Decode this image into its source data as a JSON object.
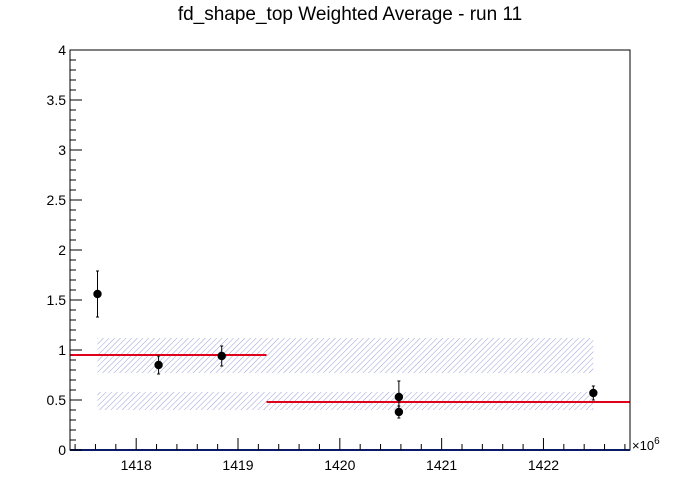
{
  "chart_data": {
    "type": "scatter",
    "title": "fd_shape_top Weighted Average - run 11",
    "xlabel": "",
    "ylabel": "",
    "x_exponent_label": "×10",
    "x_exponent_power": "6",
    "xlim": [
      1417.35,
      1422.85
    ],
    "ylim": [
      0,
      4
    ],
    "x_ticks": [
      1418,
      1419,
      1420,
      1421,
      1422
    ],
    "x_tick_labels": [
      "1418",
      "1419",
      "1420",
      "1421",
      "1422"
    ],
    "y_ticks": [
      0,
      0.5,
      1,
      1.5,
      2,
      2.5,
      3,
      3.5,
      4
    ],
    "y_tick_labels": [
      "0",
      "0.5",
      "1",
      "1.5",
      "2",
      "2.5",
      "3",
      "3.5",
      "4"
    ],
    "grid": false,
    "points": [
      {
        "x": 1417.62,
        "y": 1.56,
        "yerr_low": 0.23,
        "yerr_high": 0.23
      },
      {
        "x": 1418.22,
        "y": 0.85,
        "yerr_low": 0.09,
        "yerr_high": 0.09
      },
      {
        "x": 1418.84,
        "y": 0.94,
        "yerr_low": 0.1,
        "yerr_high": 0.1
      },
      {
        "x": 1420.58,
        "y": 0.53,
        "yerr_low": 0.16,
        "yerr_high": 0.16
      },
      {
        "x": 1420.58,
        "y": 0.38,
        "yerr_low": 0.06,
        "yerr_high": 0.06
      },
      {
        "x": 1422.49,
        "y": 0.57,
        "yerr_low": 0.07,
        "yerr_high": 0.07
      }
    ],
    "bands": [
      {
        "x0": 1417.62,
        "x1": 1422.49,
        "y0": 0.77,
        "y1": 1.12
      },
      {
        "x0": 1417.62,
        "x1": 1422.49,
        "y0": 0.4,
        "y1": 0.58
      }
    ],
    "average_lines": [
      {
        "x0": 1417.35,
        "x1": 1419.28,
        "y": 0.95
      },
      {
        "x0": 1419.28,
        "x1": 1422.85,
        "y": 0.48
      }
    ],
    "colors": {
      "points": "#000000",
      "average_line": "#e0001b",
      "band_hatch": "#7b7fc9",
      "axis": "#000000",
      "baseline": "#0b1a66"
    }
  }
}
